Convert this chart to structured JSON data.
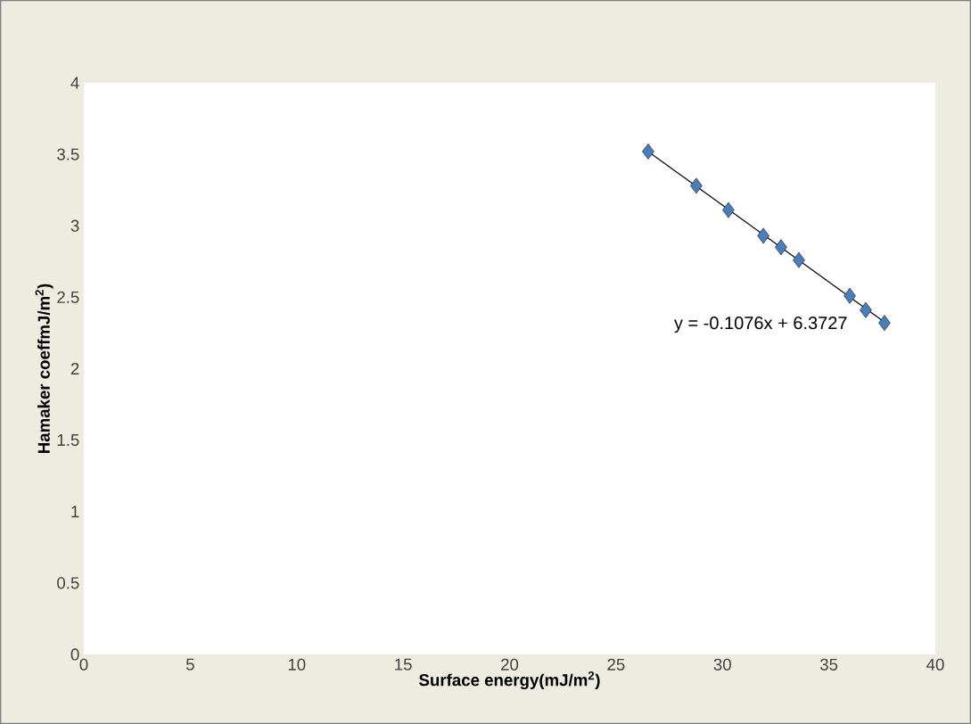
{
  "chart_data": {
    "type": "scatter",
    "xlabel": "Surface energy(mJ/m$^{2}$)",
    "ylabel": "Hamaker coeffmJ/m$^{2}$)",
    "xlim": [
      0,
      40
    ],
    "ylim": [
      0,
      4
    ],
    "xticks": [
      0,
      5,
      10,
      15,
      20,
      25,
      30,
      35,
      40
    ],
    "yticks": [
      0,
      0.5,
      1,
      1.5,
      2,
      2.5,
      3,
      3.5,
      4
    ],
    "series": [
      {
        "marker": "diamond",
        "color": "#4a7ebb",
        "x": [
          26.51,
          28.77,
          30.28,
          31.92,
          32.75,
          33.59,
          35.98,
          36.73,
          37.61
        ],
        "values": [
          3.52,
          3.28,
          3.11,
          2.93,
          2.85,
          2.76,
          2.51,
          2.41,
          2.32
        ]
      },
      {
        "type": "line",
        "color": "#000000",
        "x": [
          26.51,
          37.61
        ],
        "values": [
          3.52,
          2.326
        ]
      }
    ],
    "annotations": [
      "y = -0.1076x + 6.3727"
    ]
  }
}
